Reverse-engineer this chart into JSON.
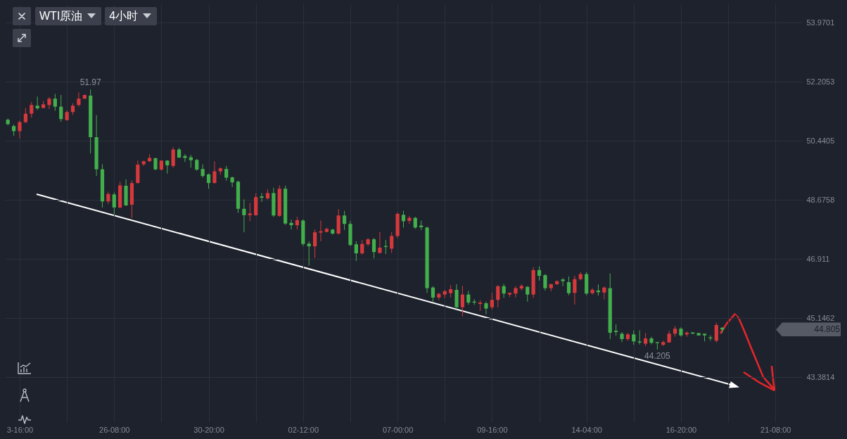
{
  "chart_data": {
    "type": "candlestick",
    "title": "WTI原油",
    "subtitle": "4小时",
    "categories": [
      null,
      null,
      "3-16:00",
      null,
      null,
      null,
      null,
      null,
      null,
      null,
      null,
      null,
      null,
      null,
      null,
      null,
      null,
      null,
      "26-08:00",
      null,
      null,
      null,
      null,
      null,
      null,
      null,
      null,
      null,
      null,
      null,
      null,
      null,
      null,
      null,
      "30-20:00",
      null,
      null,
      null,
      null,
      null,
      null,
      null,
      null,
      null,
      null,
      null,
      null,
      null,
      null,
      null,
      "02-12:00",
      null,
      null,
      null,
      null,
      null,
      null,
      null,
      null,
      null,
      null,
      null,
      null,
      null,
      null,
      null,
      "07-00:00",
      null,
      null,
      null,
      null,
      null,
      null,
      null,
      null,
      null,
      null,
      null,
      null,
      null,
      null,
      null,
      "09-16:00",
      null,
      null,
      null,
      null,
      null,
      null,
      null,
      null,
      null,
      null,
      null,
      null,
      null,
      null,
      null,
      "14-04:00",
      null,
      null,
      null,
      null,
      null,
      null,
      null,
      null,
      null,
      null,
      null,
      null,
      null,
      null,
      null,
      "16-20:00",
      null,
      null,
      null,
      null,
      null,
      null,
      null,
      null,
      null,
      null,
      null,
      null,
      null,
      null,
      null,
      "21-08:00",
      null,
      null,
      null,
      null
    ],
    "ohlc": [
      [
        51.07,
        51.11,
        50.9,
        50.94
      ],
      [
        50.88,
        50.93,
        50.59,
        50.73
      ],
      [
        50.73,
        51.04,
        50.52,
        51.0
      ],
      [
        51.0,
        51.42,
        50.97,
        51.25
      ],
      [
        51.25,
        51.6,
        51.13,
        51.51
      ],
      [
        51.49,
        51.76,
        51.36,
        51.41
      ],
      [
        51.42,
        51.63,
        51.41,
        51.53
      ],
      [
        51.51,
        51.75,
        51.39,
        51.7
      ],
      [
        51.7,
        51.84,
        51.34,
        51.46
      ],
      [
        51.46,
        51.81,
        51.01,
        51.09
      ],
      [
        51.06,
        51.35,
        51.04,
        51.3
      ],
      [
        51.3,
        51.56,
        51.22,
        51.49
      ],
      [
        51.51,
        51.89,
        51.46,
        51.7
      ],
      [
        51.7,
        51.82,
        51.69,
        51.81
      ],
      [
        51.79,
        51.97,
        50.06,
        50.55
      ],
      [
        50.55,
        51.21,
        49.39,
        49.59
      ],
      [
        49.59,
        49.74,
        48.45,
        48.63
      ],
      [
        48.63,
        48.92,
        48.55,
        48.85
      ],
      [
        48.84,
        48.9,
        48.23,
        48.45
      ],
      [
        48.45,
        49.22,
        48.43,
        49.11
      ],
      [
        49.1,
        49.29,
        48.5,
        48.51
      ],
      [
        48.53,
        49.26,
        48.14,
        49.18
      ],
      [
        49.18,
        49.85,
        49.17,
        49.73
      ],
      [
        49.74,
        49.85,
        49.69,
        49.83
      ],
      [
        49.83,
        50.04,
        49.81,
        49.93
      ],
      [
        49.92,
        49.94,
        49.56,
        49.59
      ],
      [
        49.58,
        49.86,
        49.55,
        49.85
      ],
      [
        49.85,
        49.86,
        49.46,
        49.71
      ],
      [
        49.69,
        50.25,
        49.64,
        50.18
      ],
      [
        50.18,
        50.23,
        49.93,
        49.94
      ],
      [
        49.99,
        50.04,
        49.81,
        49.93
      ],
      [
        49.95,
        50.02,
        49.64,
        49.86
      ],
      [
        49.87,
        49.9,
        49.55,
        49.58
      ],
      [
        49.6,
        49.74,
        49.34,
        49.39
      ],
      [
        49.44,
        49.46,
        49.01,
        49.18
      ],
      [
        49.18,
        49.83,
        49.17,
        49.53
      ],
      [
        49.53,
        49.65,
        49.43,
        49.62
      ],
      [
        49.6,
        49.69,
        49.25,
        49.34
      ],
      [
        49.35,
        49.37,
        49.06,
        49.2
      ],
      [
        49.22,
        49.25,
        48.29,
        48.41
      ],
      [
        48.41,
        48.69,
        47.71,
        48.22
      ],
      [
        48.22,
        48.59,
        48.04,
        48.27
      ],
      [
        48.22,
        48.87,
        48.2,
        48.76
      ],
      [
        48.78,
        48.88,
        48.62,
        48.74
      ],
      [
        48.72,
        48.99,
        48.69,
        48.88
      ],
      [
        48.88,
        49.04,
        48.17,
        48.21
      ],
      [
        48.2,
        49.11,
        48.17,
        49.01
      ],
      [
        49.01,
        49.1,
        47.93,
        47.97
      ],
      [
        47.99,
        48.09,
        47.79,
        47.92
      ],
      [
        47.92,
        48.17,
        47.79,
        48.07
      ],
      [
        48.06,
        48.09,
        47.3,
        47.36
      ],
      [
        47.37,
        47.44,
        46.72,
        47.29
      ],
      [
        47.29,
        47.79,
        46.94,
        47.71
      ],
      [
        47.7,
        48.06,
        47.44,
        47.74
      ],
      [
        47.72,
        47.85,
        47.71,
        47.81
      ],
      [
        47.79,
        47.81,
        47.64,
        47.67
      ],
      [
        47.67,
        48.4,
        47.64,
        48.21
      ],
      [
        48.21,
        48.35,
        47.78,
        47.96
      ],
      [
        47.96,
        48.05,
        47.29,
        47.33
      ],
      [
        47.35,
        47.44,
        46.85,
        47.08
      ],
      [
        47.08,
        47.48,
        47.04,
        47.36
      ],
      [
        47.35,
        47.54,
        47.3,
        47.5
      ],
      [
        47.5,
        47.54,
        46.93,
        47.12
      ],
      [
        47.09,
        47.72,
        47.08,
        47.25
      ],
      [
        47.3,
        47.48,
        47.06,
        47.27
      ],
      [
        47.22,
        47.71,
        47.09,
        47.6
      ],
      [
        47.6,
        48.3,
        47.54,
        48.26
      ],
      [
        48.23,
        48.35,
        47.85,
        48.04
      ],
      [
        48.05,
        48.2,
        47.96,
        48.14
      ],
      [
        48.14,
        48.17,
        47.81,
        47.85
      ],
      [
        47.91,
        48.06,
        47.77,
        47.86
      ],
      [
        47.85,
        47.88,
        45.9,
        46.04
      ],
      [
        46.06,
        46.1,
        45.64,
        45.76
      ],
      [
        45.76,
        45.9,
        45.69,
        45.87
      ],
      [
        45.85,
        45.99,
        45.75,
        45.95
      ],
      [
        45.89,
        46.13,
        45.76,
        46.01
      ],
      [
        45.99,
        46.16,
        45.41,
        45.47
      ],
      [
        45.47,
        46.11,
        45.2,
        45.85
      ],
      [
        45.85,
        45.96,
        45.55,
        45.61
      ],
      [
        45.64,
        45.71,
        45.54,
        45.61
      ],
      [
        45.57,
        45.68,
        45.36,
        45.61
      ],
      [
        45.59,
        45.64,
        45.26,
        45.43
      ],
      [
        45.47,
        45.9,
        45.4,
        45.69
      ],
      [
        45.69,
        46.13,
        45.47,
        46.1
      ],
      [
        46.1,
        46.17,
        45.75,
        45.88
      ],
      [
        45.85,
        45.91,
        45.78,
        45.9
      ],
      [
        45.88,
        46.1,
        45.76,
        46.04
      ],
      [
        46.03,
        46.16,
        45.97,
        46.11
      ],
      [
        46.08,
        46.1,
        45.64,
        45.85
      ],
      [
        45.85,
        46.67,
        45.75,
        46.58
      ],
      [
        46.58,
        46.69,
        46.27,
        46.41
      ],
      [
        46.43,
        46.46,
        45.97,
        46.04
      ],
      [
        46.04,
        46.17,
        45.95,
        46.16
      ],
      [
        46.16,
        46.27,
        46.13,
        46.25
      ],
      [
        46.3,
        46.34,
        46.1,
        46.25
      ],
      [
        46.22,
        46.39,
        45.83,
        45.89
      ],
      [
        45.9,
        46.41,
        45.55,
        46.31
      ],
      [
        46.31,
        46.52,
        46.27,
        46.46
      ],
      [
        46.46,
        46.52,
        45.83,
        45.88
      ],
      [
        45.89,
        46.04,
        45.85,
        45.99
      ],
      [
        45.97,
        46.15,
        45.82,
        45.92
      ],
      [
        45.91,
        46.09,
        45.71,
        46.06
      ],
      [
        46.04,
        46.48,
        44.52,
        44.71
      ],
      [
        44.77,
        44.96,
        44.62,
        44.73
      ],
      [
        44.68,
        44.73,
        44.43,
        44.52
      ],
      [
        44.52,
        44.71,
        44.47,
        44.66
      ],
      [
        44.66,
        44.78,
        44.35,
        44.45
      ],
      [
        44.45,
        44.78,
        44.36,
        44.42
      ],
      [
        44.38,
        44.7,
        44.31,
        44.54
      ],
      [
        44.54,
        44.59,
        44.36,
        44.41
      ],
      [
        44.43,
        44.43,
        44.205,
        44.4
      ],
      [
        44.35,
        44.47,
        44.31,
        44.43
      ],
      [
        44.42,
        44.77,
        44.41,
        44.68
      ],
      [
        44.68,
        44.91,
        44.59,
        44.83
      ],
      [
        44.83,
        44.87,
        44.59,
        44.63
      ],
      [
        44.66,
        44.75,
        44.59,
        44.71
      ],
      [
        44.72,
        44.72,
        44.68,
        44.68
      ],
      [
        44.7,
        44.71,
        44.62,
        44.63
      ],
      [
        44.68,
        44.68,
        44.45,
        44.63
      ],
      [
        44.57,
        44.63,
        44.47,
        44.54
      ],
      [
        44.47,
        45.01,
        44.42,
        44.94
      ],
      [
        44.86,
        44.88,
        44.7,
        44.805
      ],
      null,
      null,
      null,
      null,
      null,
      null,
      null,
      null,
      null,
      null,
      null,
      null,
      null
    ],
    "colors": [
      "#43af4c",
      "#43af4c",
      "#d6393c",
      "#d6393c",
      "#d6393c",
      "#43af4c",
      "#d6393c",
      "#d6393c",
      "#43af4c",
      "#43af4c",
      "#d6393c",
      "#d6393c",
      "#d6393c",
      "#d6393c",
      "#43af4c",
      "#43af4c",
      "#43af4c",
      "#d6393c",
      "#43af4c",
      "#d6393c",
      "#43af4c",
      "#d6393c",
      "#d6393c",
      "#d6393c",
      "#d6393c",
      "#43af4c",
      "#d6393c",
      "#43af4c",
      "#d6393c",
      "#43af4c",
      "#43af4c",
      "#43af4c",
      "#43af4c",
      "#43af4c",
      "#43af4c",
      "#d6393c",
      "#d6393c",
      "#43af4c",
      "#43af4c",
      "#43af4c",
      "#43af4c",
      "#d6393c",
      "#d6393c",
      "#43af4c",
      "#d6393c",
      "#43af4c",
      "#d6393c",
      "#43af4c",
      "#43af4c",
      "#d6393c",
      "#43af4c",
      "#43af4c",
      "#d6393c",
      "#d6393c",
      "#d6393c",
      "#43af4c",
      "#d6393c",
      "#43af4c",
      "#43af4c",
      "#43af4c",
      "#d6393c",
      "#d6393c",
      "#43af4c",
      "#d6393c",
      "#43af4c",
      "#d6393c",
      "#d6393c",
      "#43af4c",
      "#d6393c",
      "#43af4c",
      "#43af4c",
      "#43af4c",
      "#43af4c",
      "#d6393c",
      "#d6393c",
      "#d6393c",
      "#43af4c",
      "#d6393c",
      "#43af4c",
      "#43af4c",
      "#d6393c",
      "#43af4c",
      "#d6393c",
      "#d6393c",
      "#43af4c",
      "#d6393c",
      "#d6393c",
      "#d6393c",
      "#43af4c",
      "#d6393c",
      "#43af4c",
      "#43af4c",
      "#d6393c",
      "#d6393c",
      "#43af4c",
      "#43af4c",
      "#d6393c",
      "#d6393c",
      "#43af4c",
      "#d6393c",
      "#43af4c",
      "#d6393c",
      "#43af4c",
      "#43af4c",
      "#43af4c",
      "#d6393c",
      "#43af4c",
      "#43af4c",
      "#d6393c",
      "#43af4c",
      "#43af4c",
      "#d6393c",
      "#d6393c",
      "#d6393c",
      "#43af4c",
      "#d6393c",
      "#43af4c",
      "#43af4c",
      "#43af4c",
      "#43af4c",
      "#d6393c",
      "#43af4c",
      null,
      null,
      null,
      null,
      null,
      null,
      null,
      null,
      null,
      null,
      null,
      null,
      null
    ],
    "ylim": [
      42.04,
      54.52
    ],
    "yticks": [
      53.9701,
      52.2053,
      50.4405,
      48.6758,
      46.911,
      45.1462,
      43.3814
    ],
    "grid": true,
    "annotations": [
      {
        "text": "51.97",
        "y": 51.97
      },
      {
        "text": "44.205",
        "y": 44.205
      },
      "44.805"
    ]
  }
}
